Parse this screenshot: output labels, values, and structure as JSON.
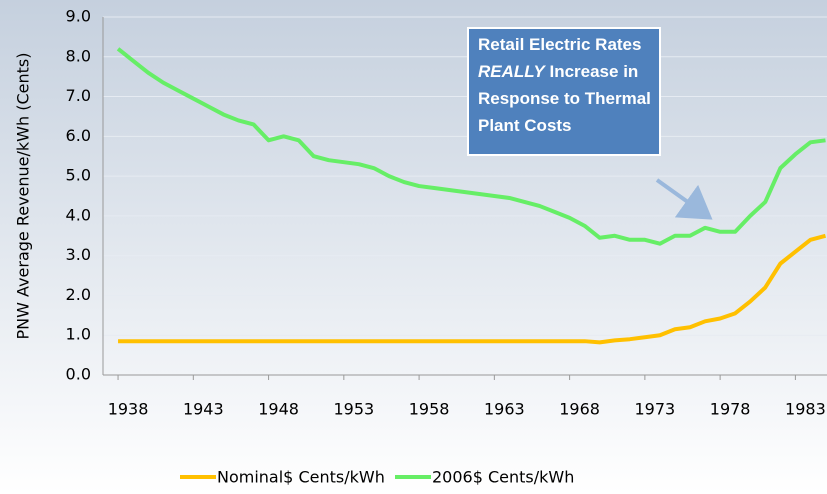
{
  "chart_data": {
    "type": "line",
    "y_label": "PNW Average Revenue/kWh (Cents)",
    "x": [
      1938,
      1939,
      1940,
      1941,
      1942,
      1943,
      1944,
      1945,
      1946,
      1947,
      1948,
      1949,
      1950,
      1951,
      1952,
      1953,
      1954,
      1955,
      1956,
      1957,
      1958,
      1959,
      1960,
      1961,
      1962,
      1963,
      1964,
      1965,
      1966,
      1967,
      1968,
      1969,
      1970,
      1971,
      1972,
      1973,
      1974,
      1975,
      1976,
      1977,
      1978,
      1979,
      1980,
      1981,
      1982,
      1983,
      1984,
      1985
    ],
    "series": [
      {
        "name": "Nominal$ Cents/kWh",
        "color": "#ffc000",
        "values": [
          0.85,
          0.85,
          0.85,
          0.85,
          0.85,
          0.85,
          0.85,
          0.85,
          0.85,
          0.85,
          0.85,
          0.85,
          0.85,
          0.85,
          0.85,
          0.85,
          0.85,
          0.85,
          0.85,
          0.85,
          0.85,
          0.85,
          0.85,
          0.85,
          0.85,
          0.85,
          0.85,
          0.85,
          0.85,
          0.85,
          0.85,
          0.85,
          0.82,
          0.87,
          0.9,
          0.95,
          1.0,
          1.15,
          1.2,
          1.35,
          1.42,
          1.55,
          1.85,
          2.2,
          2.8,
          3.1,
          3.4,
          3.5
        ]
      },
      {
        "name": "2006$ Cents/kWh",
        "color": "#66ee66",
        "values": [
          8.2,
          7.9,
          7.6,
          7.35,
          7.15,
          6.95,
          6.75,
          6.55,
          6.4,
          6.3,
          5.9,
          6.0,
          5.9,
          5.5,
          5.4,
          5.35,
          5.3,
          5.2,
          5.0,
          4.85,
          4.75,
          4.7,
          4.65,
          4.6,
          4.55,
          4.5,
          4.45,
          4.35,
          4.25,
          4.1,
          3.95,
          3.75,
          3.45,
          3.5,
          3.4,
          3.4,
          3.3,
          3.5,
          3.5,
          3.7,
          3.6,
          3.6,
          4.0,
          4.35,
          5.2,
          5.55,
          5.85,
          5.9
        ]
      }
    ],
    "xlim": [
      1937,
      1985.1
    ],
    "xticks": [
      1938,
      1943,
      1948,
      1953,
      1958,
      1963,
      1968,
      1973,
      1978,
      1983
    ],
    "ylim": [
      0,
      9
    ],
    "yticks": [
      {
        "value": 0,
        "label": "0.0"
      },
      {
        "value": 1,
        "label": "1.0"
      },
      {
        "value": 2,
        "label": "2.0"
      },
      {
        "value": 3,
        "label": "3.0"
      },
      {
        "value": 4,
        "label": "4.0"
      },
      {
        "value": 5,
        "label": "5.0"
      },
      {
        "value": 6,
        "label": "6.0"
      },
      {
        "value": 7,
        "label": "7.0"
      },
      {
        "value": 8,
        "label": "8.0"
      },
      {
        "value": 9,
        "label": "9.0"
      }
    ],
    "grid": true,
    "annotation": [
      [
        {
          "text": "Retail Electric Rates",
          "italic": false
        }
      ],
      [
        {
          "text": "REALLY",
          "italic": true
        },
        {
          "text": " Increase in",
          "italic": false
        }
      ],
      [
        {
          "text": "Response to Thermal",
          "italic": false
        }
      ],
      [
        {
          "text": "Plant Costs",
          "italic": false
        }
      ]
    ]
  }
}
